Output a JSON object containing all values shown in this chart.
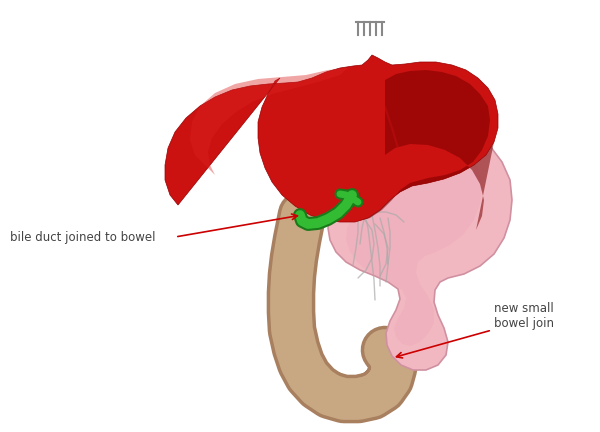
{
  "background_color": "#ffffff",
  "liver_color": "#cc1111",
  "liver_dark": "#7a0000",
  "liver_mid": "#aa0000",
  "stomach_color": "#f2b8c2",
  "stomach_dark": "#e8a0b0",
  "bowel_color": "#c8a882",
  "bowel_outline": "#a88060",
  "bile_duct_color": "#33bb33",
  "bile_duct_dark": "#1a7a1a",
  "vessel_color": "#aaaaaa",
  "annotation_color": "#cc0000",
  "text_color": "#444444",
  "label1": "bile duct joined to bowel",
  "label2": "new small\nbowel join",
  "fig_width": 6.0,
  "fig_height": 4.32,
  "clip_color": "#888888"
}
